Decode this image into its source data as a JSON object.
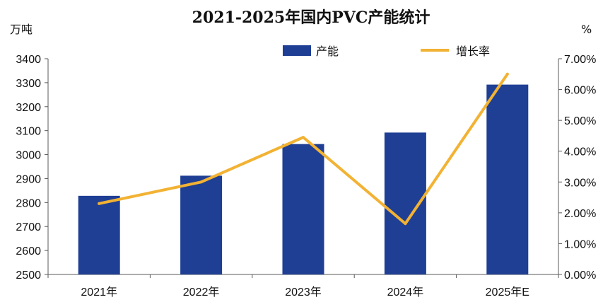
{
  "chart_data": {
    "type": "bar+line",
    "title": "2021-2025年国内PVC产能统计",
    "left_unit": "万吨",
    "right_unit": "%",
    "categories": [
      "2021年",
      "2022年",
      "2023年",
      "2024年",
      "2025年E"
    ],
    "series": [
      {
        "name": "产能",
        "type": "bar",
        "axis": "left",
        "color": "#1F3F94",
        "values": [
          2828,
          2912,
          3044,
          3092,
          3292
        ]
      },
      {
        "name": "增长率",
        "type": "line",
        "axis": "right",
        "color": "#F2B233",
        "values": [
          2.3,
          3.0,
          4.45,
          1.65,
          6.5
        ]
      }
    ],
    "y_left": {
      "min": 2500,
      "max": 3400,
      "step": 100,
      "ticks": [
        "2500",
        "2600",
        "2700",
        "2800",
        "2900",
        "3000",
        "3100",
        "3200",
        "3300",
        "3400"
      ]
    },
    "y_right": {
      "min": 0,
      "max": 7,
      "step": 1,
      "ticks": [
        "0.00%",
        "1.00%",
        "2.00%",
        "3.00%",
        "4.00%",
        "5.00%",
        "6.00%",
        "7.00%"
      ]
    },
    "grid": false,
    "legend_position": "top"
  }
}
